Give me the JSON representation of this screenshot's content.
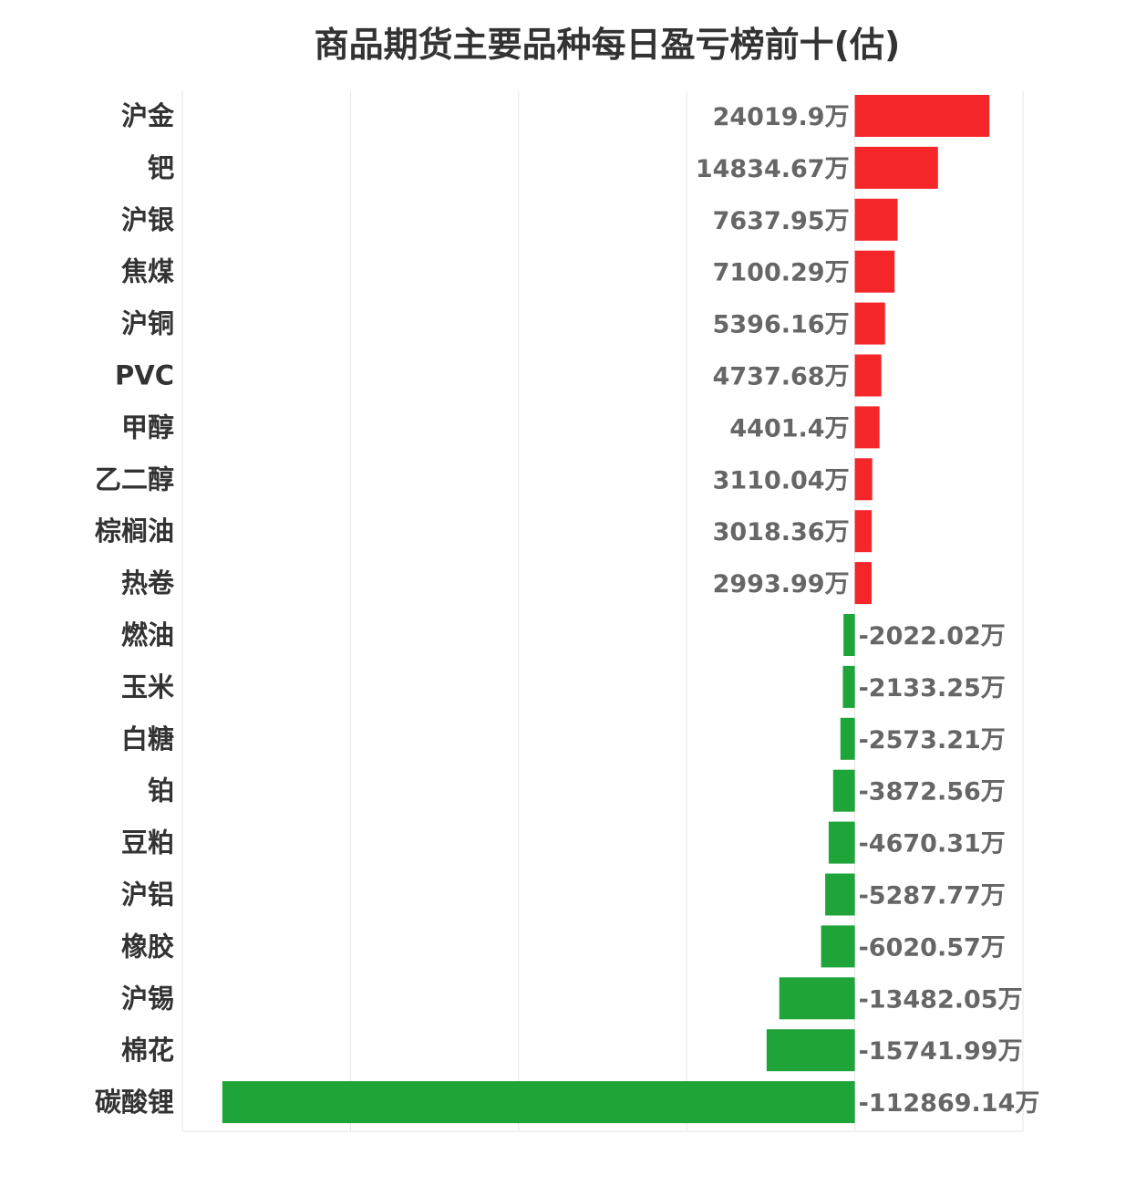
{
  "chart_data": {
    "type": "bar",
    "orientation": "horizontal",
    "title": "商品期货主要品种每日盈亏榜前十(估)",
    "unit": "万",
    "categories": [
      "沪金",
      "钯",
      "沪银",
      "焦煤",
      "沪铜",
      "PVC",
      "甲醇",
      "乙二醇",
      "棕榈油",
      "热卷",
      "燃油",
      "玉米",
      "白糖",
      "铂",
      "豆粕",
      "沪铝",
      "橡胶",
      "沪锡",
      "棉花",
      "碳酸锂"
    ],
    "values": [
      24019.9,
      14834.67,
      7637.95,
      7100.29,
      5396.16,
      4737.68,
      4401.4,
      3110.04,
      3018.36,
      2993.99,
      -2022.02,
      -2133.25,
      -2573.21,
      -3872.56,
      -4670.31,
      -5287.77,
      -6020.57,
      -13482.05,
      -15741.99,
      -112869.14
    ],
    "value_labels": [
      "24019.9万",
      "14834.67万",
      "7637.95万",
      "7100.29万",
      "5396.16万",
      "4737.68万",
      "4401.4万",
      "3110.04万",
      "3018.36万",
      "2993.99万",
      "-2022.02万",
      "-2133.25万",
      "-2573.21万",
      "-3872.56万",
      "-4670.31万",
      "-5287.77万",
      "-6020.57万",
      "-13482.05万",
      "-15741.99万",
      "-112869.14万"
    ],
    "xlim": [
      -120000,
      30000
    ],
    "x_grid_values": [
      -120000,
      -90000,
      -60000,
      -30000,
      0,
      30000
    ],
    "grid": true,
    "colors": {
      "positive": "#f5262a",
      "negative": "#1fa43a",
      "grid": "#e6e6e6",
      "title": "#333333",
      "category_label": "#333333",
      "value_label": "#666666"
    }
  }
}
